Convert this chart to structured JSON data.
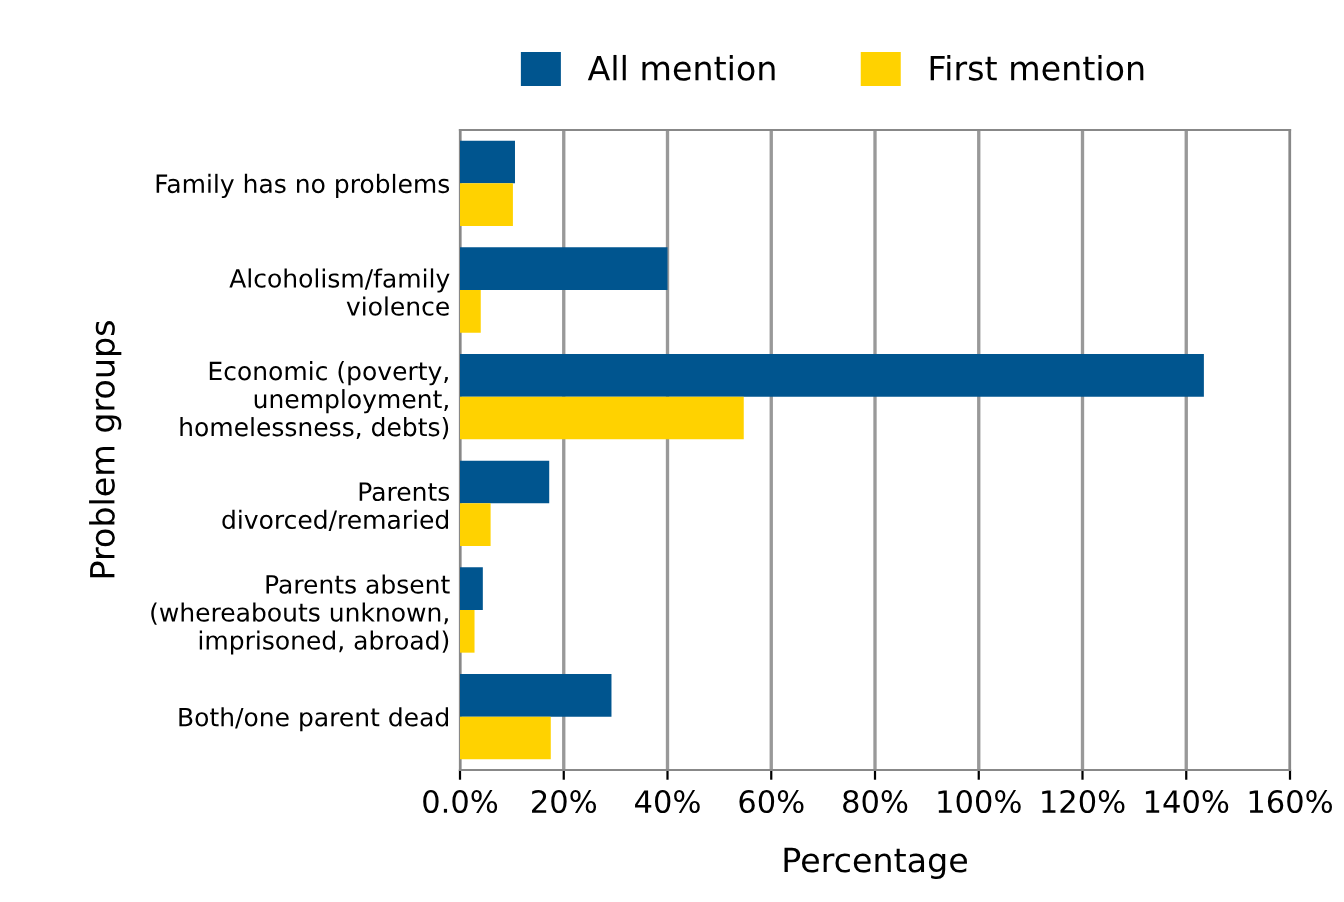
{
  "chart_data": {
    "type": "bar",
    "orientation": "horizontal",
    "xlabel": "Percentage",
    "ylabel": "Problem groups",
    "categories": [
      "Family has no problems",
      "Alcoholism/family\nviolence",
      "Economic (poverty,\nunemployment,\nhomelessness, debts)",
      "Parents\ndivorced/remaried",
      "Parents absent\n(whereabouts unknown,\nimprisoned, abroad)",
      "Both/one parent dead"
    ],
    "series": [
      {
        "name": "All mention",
        "color": "#00558f",
        "values": [
          10.6,
          40,
          143.4,
          17.2,
          4.4,
          29.2
        ]
      },
      {
        "name": "First mention",
        "color": "#ffd200",
        "values": [
          10.2,
          4.0,
          54.7,
          5.9,
          2.8,
          17.5
        ]
      }
    ],
    "xlim": [
      0,
      160
    ],
    "xticks": [
      {
        "value": 0,
        "label": "0.0%"
      },
      {
        "value": 20,
        "label": "20%"
      },
      {
        "value": 40,
        "label": "40%"
      },
      {
        "value": 60,
        "label": "60%"
      },
      {
        "value": 80,
        "label": "80%"
      },
      {
        "value": 100,
        "label": "100%"
      },
      {
        "value": 120,
        "label": "120%"
      },
      {
        "value": 140,
        "label": "140%"
      },
      {
        "value": 160,
        "label": "160%"
      }
    ],
    "grid": "x",
    "legend": "top"
  }
}
